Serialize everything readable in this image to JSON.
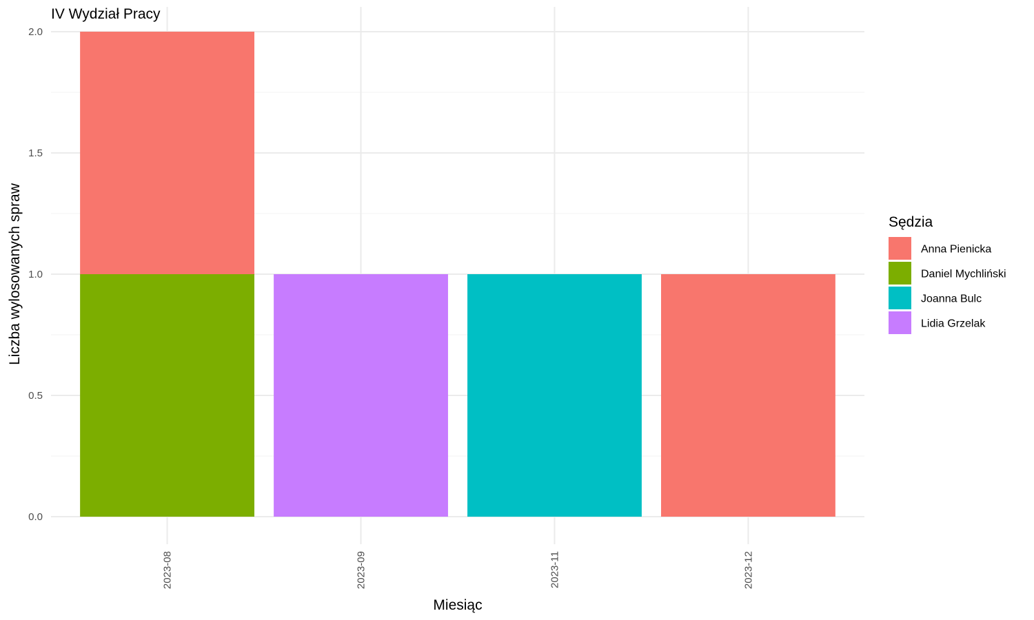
{
  "chart_data": {
    "type": "bar",
    "stacked": true,
    "title": "IV Wydział Pracy",
    "xlabel": "Miesiąc",
    "ylabel": "Liczba wylosowanych spraw",
    "categories": [
      "2023-08",
      "2023-09",
      "2023-11",
      "2023-12"
    ],
    "ylim": [
      0,
      2
    ],
    "y_ticks": [
      "0.0",
      "0.5",
      "1.0",
      "1.5",
      "2.0"
    ],
    "grid": true,
    "legend_title": "Sędzia",
    "legend_position": "right",
    "series": [
      {
        "name": "Anna Pienicka",
        "color": "#F8766D",
        "values": [
          1,
          0,
          0,
          1
        ]
      },
      {
        "name": "Daniel Mychliński",
        "color": "#7CAE00",
        "values": [
          1,
          0,
          0,
          0
        ]
      },
      {
        "name": "Joanna Bulc",
        "color": "#00BFC4",
        "values": [
          0,
          0,
          1,
          0
        ]
      },
      {
        "name": "Lidia Grzelak",
        "color": "#C77CFF",
        "values": [
          0,
          1,
          0,
          0
        ]
      }
    ]
  }
}
